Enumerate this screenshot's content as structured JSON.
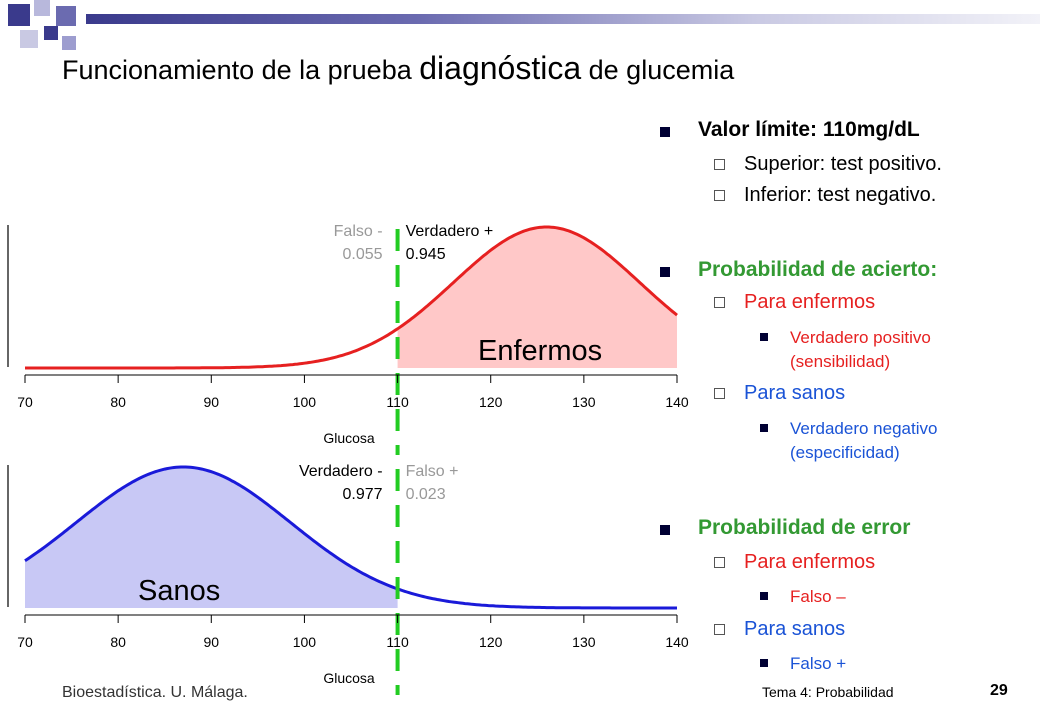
{
  "slide": {
    "title_pre": "Funcionamiento de la prueba ",
    "title_big": "diagnóstica",
    "title_post": " de glucemia"
  },
  "bullets": {
    "valor_limite": "Valor límite: 110mg/dL",
    "superior": "Superior: test positivo.",
    "inferior": "Inferior: test negativo.",
    "prob_acierto": "Probabilidad de acierto:",
    "para_enfermos_1": "Para enfermos",
    "vp": "Verdadero positivo (sensibilidad)",
    "para_sanos_1": "Para sanos",
    "vn": "Verdadero negativo (especificidad)",
    "prob_error": "Probabilidad de error",
    "para_enfermos_2": "Para enfermos",
    "falso_menos": "Falso –",
    "para_sanos_2": "Para sanos",
    "falso_mas": "Falso +"
  },
  "footer": {
    "left": "Bioestadística. U. Málaga.",
    "middle": "Tema 4: Probabilidad",
    "page": "29"
  },
  "colors": {
    "green": "#339933",
    "red": "#e62020",
    "blue": "#1a53d6",
    "enfermos_curve": "#e62020",
    "enfermos_fill": "#ffc8c8",
    "sanos_curve": "#1a1ad9",
    "sanos_fill": "#c8c8f5",
    "threshold": "#22cc22",
    "grey_label": "#999999"
  },
  "chart_data": [
    {
      "type": "area",
      "title": "Enfermos",
      "xlabel": "Glucosa",
      "x_ticks": [
        70,
        80,
        90,
        100,
        110,
        120,
        130,
        140
      ],
      "xlim": [
        70,
        140
      ],
      "mean": 126,
      "sd": 10,
      "threshold": 110,
      "shaded_side": "right",
      "labels": {
        "left_name": "Falso -",
        "left_value": "0.055",
        "right_name": "Verdadero +",
        "right_value": "0.945"
      }
    },
    {
      "type": "area",
      "title": "Sanos",
      "xlabel": "Glucosa",
      "x_ticks": [
        70,
        80,
        90,
        100,
        110,
        120,
        130,
        140
      ],
      "xlim": [
        70,
        140
      ],
      "mean": 87,
      "sd": 11.5,
      "threshold": 110,
      "shaded_side": "left",
      "labels": {
        "left_name": "Verdadero -",
        "left_value": "0.977",
        "right_name": "Falso +",
        "right_value": "0.023"
      }
    }
  ]
}
